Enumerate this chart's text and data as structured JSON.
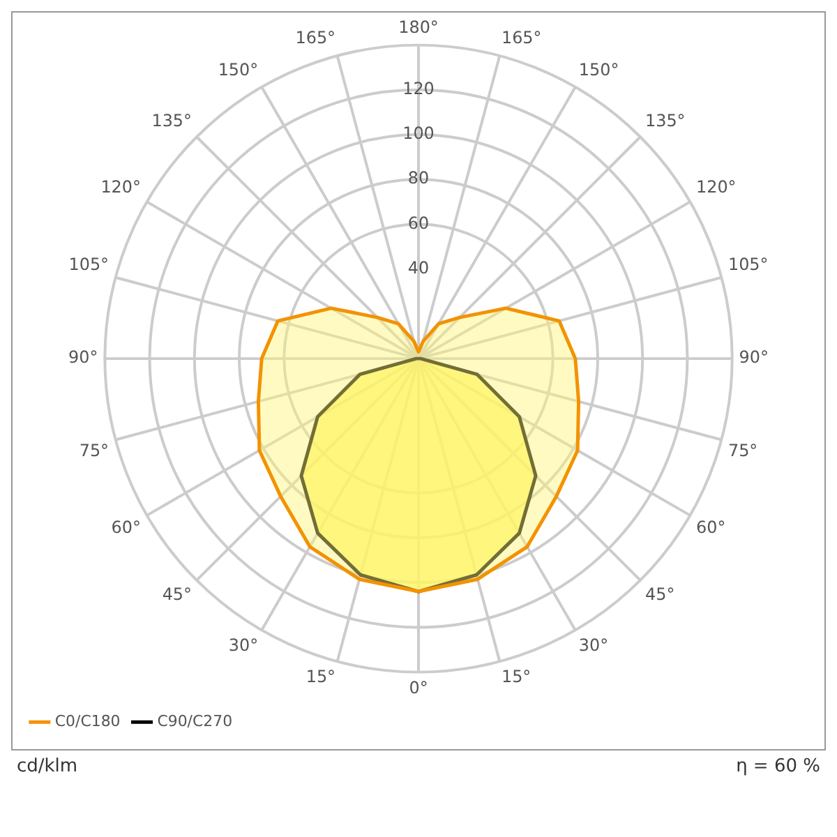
{
  "chart_data": {
    "type": "radar",
    "categories": [
      "180°",
      "165°",
      "150°",
      "135°",
      "120°",
      "105°",
      "90°",
      "75°",
      "60°",
      "45°",
      "30°",
      "15°",
      "0°",
      "15°",
      "30°",
      "45°",
      "60°",
      "75°",
      "90°",
      "105°",
      "120°",
      "135°",
      "150°",
      "165°"
    ],
    "series": [
      {
        "name": "C0/C180",
        "color": "#f39200",
        "values": [
          3,
          8,
          18,
          26,
          45,
          65,
          70,
          74,
          82,
          87,
          97,
          102,
          104,
          102,
          97,
          87,
          82,
          74,
          70,
          65,
          45,
          26,
          18,
          8
        ]
      },
      {
        "name": "C90/C270",
        "color": "#000000",
        "values": [
          0,
          0,
          0,
          0,
          0,
          0,
          1,
          27,
          52,
          74,
          90,
          100,
          104,
          100,
          90,
          74,
          52,
          27,
          1,
          0,
          0,
          0,
          0,
          0
        ]
      }
    ],
    "ylim": [
      0,
      140
    ],
    "yticks": [
      40,
      60,
      80,
      100,
      120
    ],
    "grid": true,
    "legend": "bottom left",
    "marker": "none",
    "line_style": "solid",
    "annotations": [
      "cd/klm",
      "η = 60 %"
    ]
  }
}
